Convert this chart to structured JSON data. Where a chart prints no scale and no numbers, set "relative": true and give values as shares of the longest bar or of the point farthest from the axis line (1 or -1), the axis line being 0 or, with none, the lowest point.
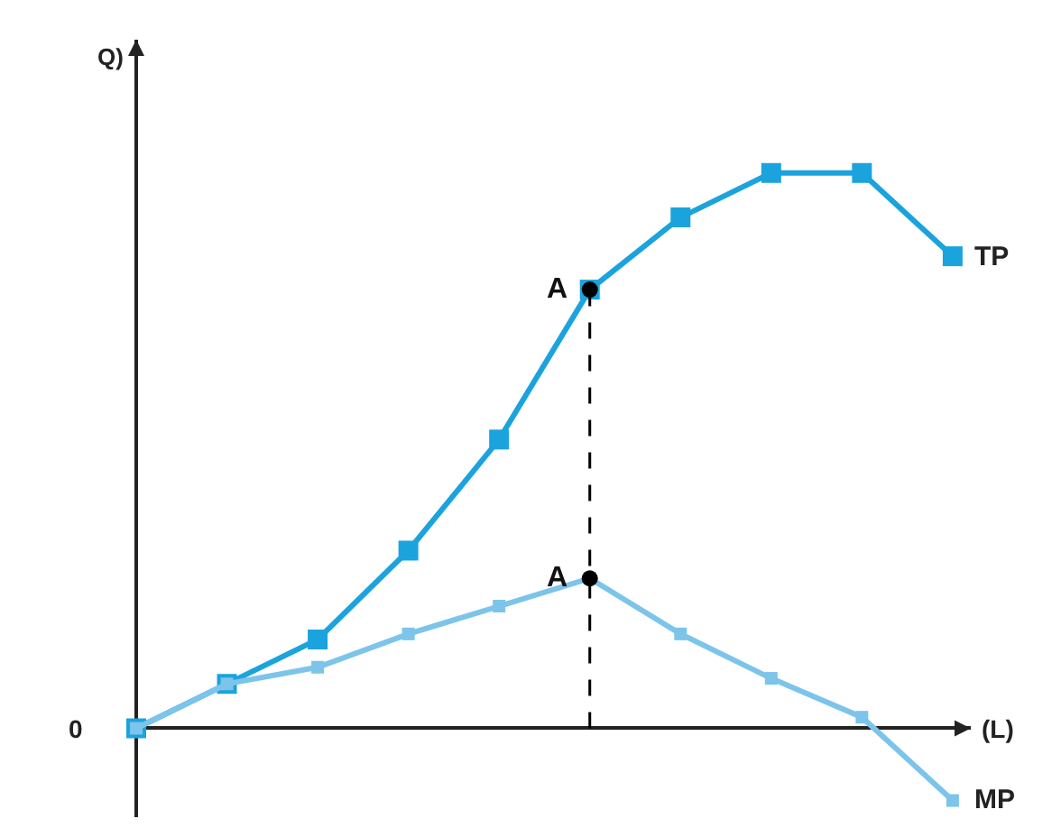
{
  "chart_data": {
    "type": "line",
    "relative": true,
    "ylabel": "Q)",
    "xlabel": "(L)",
    "categories": [
      null,
      null,
      null,
      null,
      null,
      null,
      null,
      null,
      null,
      null
    ],
    "series": [
      {
        "name": "TP",
        "color": "#1ba3dd",
        "values": [
          0,
          0.08,
          0.16,
          0.32,
          0.52,
          0.79,
          0.92,
          1,
          1,
          0.85
        ]
      },
      {
        "name": "MP",
        "color": "#7cc4ea",
        "values": [
          0,
          0.08,
          0.11,
          0.17,
          0.22,
          0.27,
          0.17,
          0.09,
          0.02,
          -0.13
        ]
      }
    ],
    "annotations": [
      "0",
      "A",
      "A"
    ],
    "marker": "square",
    "line_style": "solid",
    "legend": false
  }
}
